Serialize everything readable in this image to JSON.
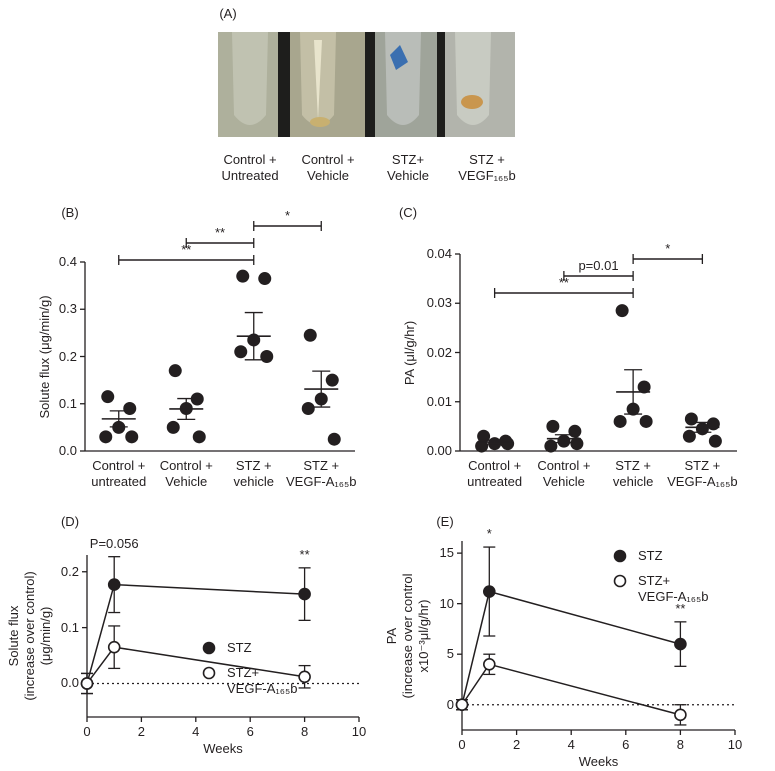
{
  "panel_a": {
    "label": "(A)",
    "captions": [
      "Control +\nUntreated",
      "Control +\nVehicle",
      "STZ+\nVehicle",
      "STZ +\nVEGF₁₆₅b"
    ]
  },
  "chart_data": [
    {
      "type": "strip",
      "title": "(B)",
      "ylabel": "Solute flux (μg/min/g)",
      "categories": [
        "Control +\nuntreated",
        "Control +\nVehicle",
        "STZ +\nvehicle",
        "STZ +\nVEGF-A₁₆₅b"
      ],
      "values": [
        [
          0.115,
          0.09,
          0.05,
          0.03,
          0.03
        ],
        [
          0.17,
          0.11,
          0.09,
          0.05,
          0.03
        ],
        [
          0.37,
          0.365,
          0.235,
          0.21,
          0.2
        ],
        [
          0.245,
          0.15,
          0.11,
          0.09,
          0.025
        ]
      ],
      "means": [
        0.068,
        0.089,
        0.243,
        0.131
      ],
      "errors": [
        0.017,
        0.022,
        0.05,
        0.038
      ],
      "color": "#231f20",
      "ylim": [
        0,
        0.4
      ],
      "yticks": [
        {
          "value": 0,
          "label": "0.0"
        },
        0.1,
        0.2,
        0.3,
        0.4
      ],
      "brackets": [
        {
          "label": "**",
          "from": 0,
          "to": 2
        },
        {
          "label": "**",
          "from": 1,
          "to": 2
        },
        {
          "label": "*",
          "from": 2,
          "to": 3
        }
      ]
    },
    {
      "type": "strip",
      "title": "(C)",
      "ylabel": "PA (μl/g/hr)",
      "categories": [
        "Control +\nuntreated",
        "Control +\nVehicle",
        "STZ +\nvehicle",
        "STZ +\nVEGF-A₁₆₅b"
      ],
      "values": [
        [
          0.003,
          0.002,
          0.0015,
          0.001,
          0.0015
        ],
        [
          0.005,
          0.004,
          0.002,
          0.001,
          0.0015
        ],
        [
          0.0285,
          0.013,
          0.0085,
          0.006,
          0.006
        ],
        [
          0.0065,
          0.0055,
          0.0045,
          0.003,
          0.002
        ]
      ],
      "means": [
        0.0018,
        0.0025,
        0.012,
        0.0048
      ],
      "errors": [
        0.0004,
        0.0008,
        0.0045,
        0.001
      ],
      "color": "#231f20",
      "ylim": [
        0,
        0.04
      ],
      "yticks": [
        {
          "value": 0,
          "label": "0.00"
        },
        0.01,
        0.02,
        0.03,
        0.04
      ],
      "brackets": [
        {
          "label": "**",
          "from": 0,
          "to": 2
        },
        {
          "label": "p=0.01",
          "from": 1,
          "to": 2
        },
        {
          "label": "*",
          "from": 2,
          "to": 3
        }
      ]
    },
    {
      "type": "line",
      "title": "(D)",
      "xlabel": "Weeks",
      "ylabel": "Solute flux\n(increase over control)\n(μg/min/g)",
      "x": [
        0,
        1,
        8
      ],
      "series": [
        {
          "name": "STZ",
          "color": "#231f20",
          "marker": "filled",
          "values": [
            0,
            0.177,
            0.16
          ],
          "errors": [
            0.018,
            0.05,
            0.047
          ]
        },
        {
          "name": "STZ+\nVEGF-A₁₆₅b",
          "color": "#231f20",
          "marker": "open",
          "values": [
            0,
            0.065,
            0.012
          ],
          "errors": [
            0.018,
            0.038,
            0.02
          ]
        }
      ],
      "xlim": [
        0,
        10
      ],
      "xticks": [
        0,
        2,
        4,
        6,
        8,
        10
      ],
      "ylim": [
        -0.06,
        0.23
      ],
      "yticks": [
        {
          "value": 0,
          "label": "0.0"
        },
        0.1,
        0.2
      ],
      "reference_line": 0,
      "legend": "center right",
      "annotations": [
        {
          "x": 1,
          "text": "P=0.056"
        },
        {
          "x": 8,
          "text": "**"
        }
      ]
    },
    {
      "type": "line",
      "title": "(E)",
      "xlabel": "Weeks",
      "ylabel": "PA\n(increase over control\nx10⁻³μl/g/hr)",
      "x": [
        0,
        1,
        8
      ],
      "series": [
        {
          "name": "STZ",
          "color": "#231f20",
          "marker": "filled",
          "values": [
            0,
            11.2,
            6
          ],
          "errors": [
            0.5,
            4.4,
            2.2
          ]
        },
        {
          "name": "STZ+\nVEGF-A₁₆₅b",
          "color": "#231f20",
          "marker": "open",
          "values": [
            0,
            4,
            -1
          ],
          "errors": [
            0.5,
            1,
            1
          ]
        }
      ],
      "xlim": [
        0,
        10
      ],
      "xticks": [
        0,
        2,
        4,
        6,
        8,
        10
      ],
      "ylim": [
        -2.5,
        16.2
      ],
      "yticks": [
        0,
        5,
        10,
        15
      ],
      "reference_line": 0,
      "legend": "upper right",
      "annotations": [
        {
          "x": 1,
          "text": "*"
        },
        {
          "x": 8,
          "text": "**"
        }
      ]
    }
  ]
}
